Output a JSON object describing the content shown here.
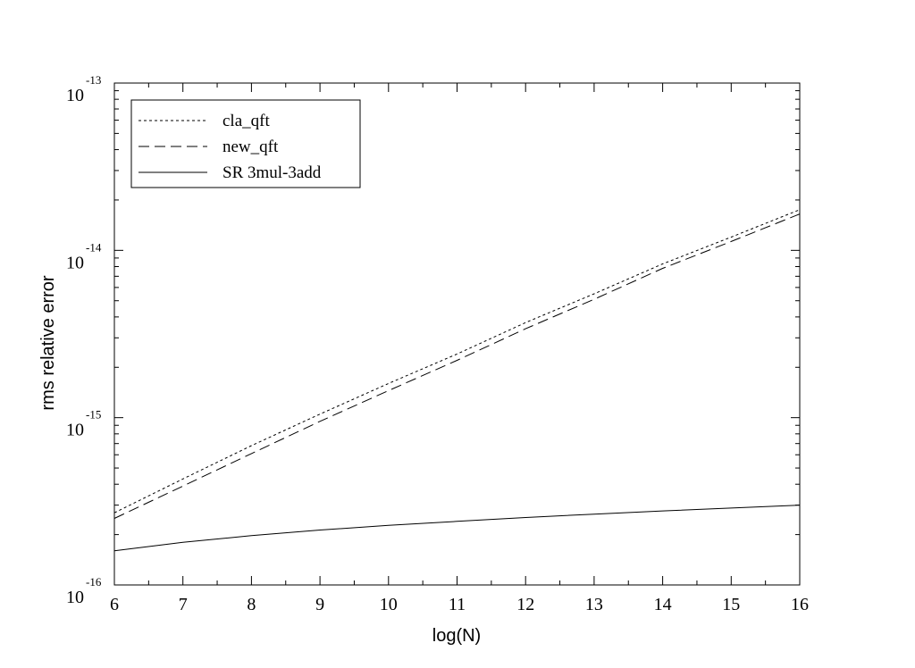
{
  "chart_data": {
    "type": "line",
    "xlabel": "log(N)",
    "ylabel": "rms relative error",
    "xlim": [
      6,
      16
    ],
    "ylim": [
      1e-16,
      1e-13
    ],
    "yscale": "log",
    "x_ticks": [
      "6",
      "7",
      "8",
      "9",
      "10",
      "11",
      "12",
      "13",
      "14",
      "15",
      "16"
    ],
    "y_ticks": [
      {
        "base": "10",
        "exp": "-16",
        "value": 1e-16
      },
      {
        "base": "10",
        "exp": "-15",
        "value": 1e-15
      },
      {
        "base": "10",
        "exp": "-14",
        "value": 1e-14
      },
      {
        "base": "10",
        "exp": "-13",
        "value": 1e-13
      }
    ],
    "legend_position": "top-left",
    "grid": false,
    "x": [
      6,
      7,
      8,
      9,
      10,
      11,
      12,
      13,
      14,
      15,
      16
    ],
    "series": [
      {
        "name": "cla_qft",
        "style": "dotted",
        "values": [
          2.7e-16,
          4.3e-16,
          6.8e-16,
          1.05e-15,
          1.6e-15,
          2.4e-15,
          3.7e-15,
          5.5e-15,
          8.3e-15,
          1.2e-14,
          1.75e-14
        ]
      },
      {
        "name": "new_qft",
        "style": "dashed",
        "values": [
          2.5e-16,
          3.9e-16,
          6.1e-16,
          9.5e-16,
          1.45e-15,
          2.2e-15,
          3.4e-15,
          5.1e-15,
          7.8e-15,
          1.13e-14,
          1.65e-14
        ]
      },
      {
        "name": "SR 3mul-3add",
        "style": "solid",
        "values": [
          1.6e-16,
          1.8e-16,
          1.97e-16,
          2.13e-16,
          2.27e-16,
          2.4e-16,
          2.53e-16,
          2.65e-16,
          2.77e-16,
          2.88e-16,
          3e-16
        ]
      }
    ]
  }
}
